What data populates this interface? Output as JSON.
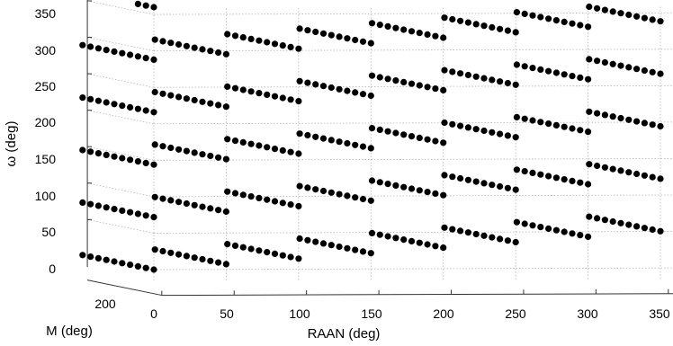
{
  "chart_data": {
    "type": "scatter",
    "projection": "3d",
    "grid": true,
    "marker_color": "#000000",
    "grid_color": "#b4b4b4",
    "xlabel": "RAAN (deg)",
    "ylabel": "M (deg)",
    "zlabel": "ω (deg)",
    "x_ticks": [
      "0",
      "50",
      "100",
      "150",
      "200",
      "250",
      "300",
      "350"
    ],
    "y_ticks": [
      "200"
    ],
    "z_ticks": [
      "0",
      "50",
      "100",
      "150",
      "200",
      "250",
      "300",
      "350"
    ],
    "xlim": [
      0,
      360
    ],
    "ylim": [
      0,
      360
    ],
    "zlim": [
      -15,
      360
    ],
    "raan_values": [
      0,
      50,
      100,
      150,
      200,
      250,
      300,
      350
    ],
    "m_values": [
      216,
      226,
      236,
      246,
      256,
      266,
      276,
      286,
      296,
      306
    ],
    "omega_offsets": [
      0,
      72,
      144,
      216,
      288,
      360
    ],
    "omega_step_per_raan": 7.2,
    "omega_range": [
      -15,
      360
    ],
    "points_per_segment": 10
  }
}
